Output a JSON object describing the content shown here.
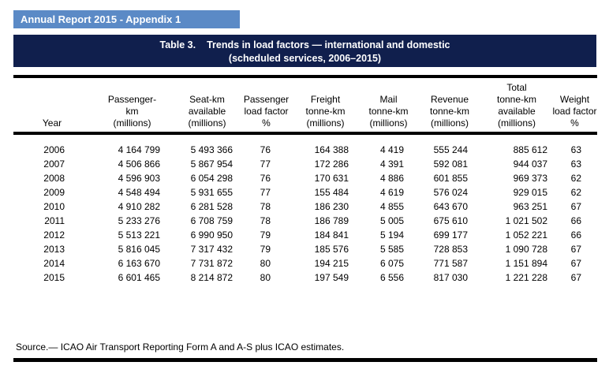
{
  "banner": {
    "text": "Annual Report 2015 - Appendix 1"
  },
  "title_band": {
    "label": "Table 3.",
    "title": "Trends in load factors  — international and domestic",
    "subtitle": "(scheduled services, 2006–2015)"
  },
  "table": {
    "headers": [
      "Year",
      "Passenger-\nkm\n(millions)",
      "Seat-km\navailable\n(millions)",
      "Passenger\nload factor\n%",
      "Freight\ntonne-km\n(millions)",
      "Mail\ntonne-km\n(millions)",
      "Revenue\ntonne-km\n(millions)",
      "Total\ntonne-km\navailable\n(millions)",
      "Weight\nload factor\n%"
    ],
    "rows": [
      [
        "2006",
        "4 164 799",
        "5 493 366",
        "76",
        "164 388",
        "4 419",
        "555 244",
        "885 612",
        "63"
      ],
      [
        "2007",
        "4 506 866",
        "5 867 954",
        "77",
        "172 286",
        "4 391",
        "592 081",
        "944 037",
        "63"
      ],
      [
        "2008",
        "4 596 903",
        "6 054 298",
        "76",
        "170 631",
        "4 886",
        "601 855",
        "969 373",
        "62"
      ],
      [
        "2009",
        "4 548 494",
        "5 931 655",
        "77",
        "155 484",
        "4 619",
        "576 024",
        "929 015",
        "62"
      ],
      [
        "2010",
        "4 910 282",
        "6 281 528",
        "78",
        "186 230",
        "4 855",
        "643 670",
        "963 251",
        "67"
      ],
      [
        "2011",
        "5 233 276",
        "6 708 759",
        "78",
        "186 789",
        "5 005",
        "675 610",
        "1 021 502",
        "66"
      ],
      [
        "2012",
        "5 513 221",
        "6 990 950",
        "79",
        "184 841",
        "5 194",
        "699 177",
        "1 052 221",
        "66"
      ],
      [
        "2013",
        "5 816 045",
        "7 317 432",
        "79",
        "185 576",
        "5 585",
        "728 853",
        "1 090 728",
        "67"
      ],
      [
        "2014",
        "6 163 670",
        "7 731 872",
        "80",
        "194 215",
        "6 075",
        "771 587",
        "1 151 894",
        "67"
      ],
      [
        "2015",
        "6 601 465",
        "8 214 872",
        "80",
        "197 549",
        "6 556",
        "817 030",
        "1 221 228",
        "67"
      ]
    ]
  },
  "source": {
    "text": "Source.— ICAO Air Transport Reporting Form A and A-S plus ICAO estimates."
  },
  "colors": {
    "banner_blue": "#5b8ac6",
    "band_navy": "#101f4d",
    "border_black": "#000000"
  }
}
